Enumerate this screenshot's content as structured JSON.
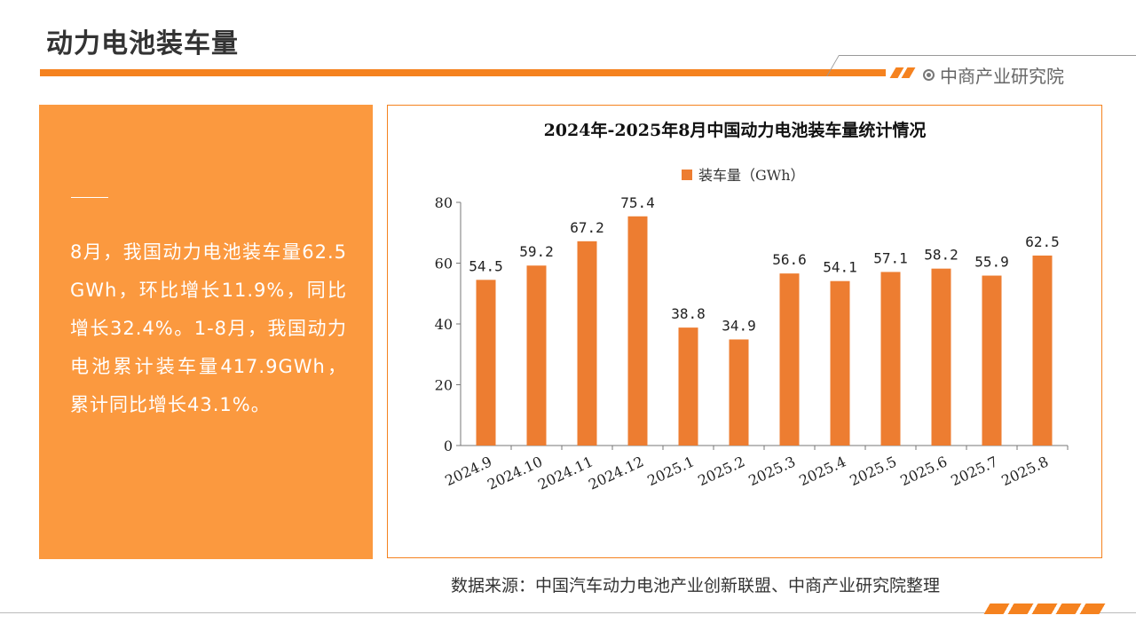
{
  "page": {
    "title": "动力电池装车量",
    "brand": "中商产业研究院",
    "source": "数据来源：中国汽车动力电池产业创新联盟、中商产业研究院整理"
  },
  "summary": {
    "text": "8月，我国动力电池装车量62.5GWh，环比增长11.9%，同比增长32.4%。1-8月，我国动力电池累计装车量417.9GWh，累计同比增长43.1%。"
  },
  "colors": {
    "accent": "#f5821f",
    "bar": "#ed7d31",
    "panel": "#fb993f"
  },
  "chart_data": {
    "type": "bar",
    "title": "2024年-2025年8月中国动力电池装车量统计情况",
    "legend_position": "top-center",
    "categories": [
      "2024.9",
      "2024.10",
      "2024.11",
      "2024.12",
      "2025.1",
      "2025.2",
      "2025.3",
      "2025.4",
      "2025.5",
      "2025.6",
      "2025.7",
      "2025.8"
    ],
    "series": [
      {
        "name": "装车量（GWh）",
        "values": [
          54.5,
          59.2,
          67.2,
          75.4,
          38.8,
          34.9,
          56.6,
          54.1,
          57.1,
          58.2,
          55.9,
          62.5
        ]
      }
    ],
    "yticks": [
      "0",
      "20",
      "40",
      "60",
      "80"
    ],
    "ylim": [
      0,
      80
    ],
    "grid": false
  }
}
